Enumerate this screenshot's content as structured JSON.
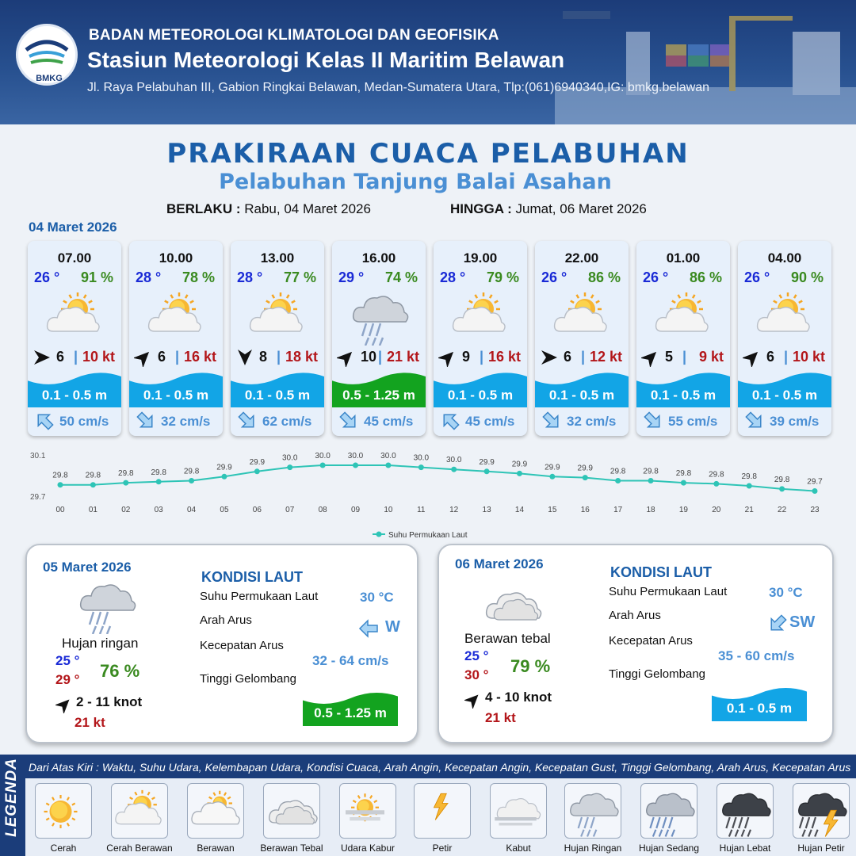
{
  "header": {
    "org": "BADAN METEOROLOGI KLIMATOLOGI DAN GEOFISIKA",
    "station": "Stasiun Meteorologi Kelas II Maritim Belawan",
    "address": "Jl. Raya Pelabuhan III, Gabion Ringkai Belawan, Medan-Sumatera Utara, Tlp:(061)6940340,IG: bmkg.belawan",
    "logo_text": "BMKG"
  },
  "title": "PRAKIRAAN CUACA PELABUHAN",
  "subtitle": "Pelabuhan Tanjung Balai Asahan",
  "validity": {
    "from_label": "BERLAKU :",
    "from_value": "Rabu, 04 Maret 2026",
    "to_label": "HINGGA :",
    "to_value": "Jumat, 06 Maret 2026"
  },
  "day1_label": "04 Maret 2026",
  "hourly": [
    {
      "time": "07.00",
      "temp": "26 °",
      "hum": "91 %",
      "icon": "cerah-berawan",
      "wind_dir": "east",
      "wind_speed": "6",
      "gust": "10 kt",
      "wave": "0.1 - 0.5 m",
      "wave_type": "low",
      "current_dir": "northwest",
      "current": "50 cm/s"
    },
    {
      "time": "10.00",
      "temp": "28 °",
      "hum": "78 %",
      "icon": "cerah-berawan",
      "wind_dir": "northeast",
      "wind_speed": "6",
      "gust": "16 kt",
      "wave": "0.1 - 0.5 m",
      "wave_type": "low",
      "current_dir": "southeast",
      "current": "32 cm/s"
    },
    {
      "time": "13.00",
      "temp": "28 °",
      "hum": "77 %",
      "icon": "cerah-berawan",
      "wind_dir": "south",
      "wind_speed": "8",
      "gust": "18 kt",
      "wave": "0.1 - 0.5 m",
      "wave_type": "low",
      "current_dir": "southeast",
      "current": "62 cm/s"
    },
    {
      "time": "16.00",
      "temp": "29 °",
      "hum": "74 %",
      "icon": "hujan-ringan",
      "wind_dir": "northeast",
      "wind_speed": "10",
      "gust": "21 kt",
      "wave": "0.5 - 1.25 m",
      "wave_type": "moderate",
      "current_dir": "southeast",
      "current": "45 cm/s"
    },
    {
      "time": "19.00",
      "temp": "28 °",
      "hum": "79 %",
      "icon": "cerah-berawan",
      "wind_dir": "northeast",
      "wind_speed": "9",
      "gust": "16 kt",
      "wave": "0.1 - 0.5 m",
      "wave_type": "low",
      "current_dir": "northwest",
      "current": "45 cm/s"
    },
    {
      "time": "22.00",
      "temp": "26 °",
      "hum": "86 %",
      "icon": "cerah-berawan",
      "wind_dir": "east",
      "wind_speed": "6",
      "gust": "12 kt",
      "wave": "0.1 - 0.5 m",
      "wave_type": "low",
      "current_dir": "southeast",
      "current": "32 cm/s"
    },
    {
      "time": "01.00",
      "temp": "26 °",
      "hum": "86 %",
      "icon": "cerah-berawan",
      "wind_dir": "northeast",
      "wind_speed": "5",
      "gust": "9 kt",
      "wave": "0.1 - 0.5 m",
      "wave_type": "low",
      "current_dir": "southeast",
      "current": "55 cm/s"
    },
    {
      "time": "04.00",
      "temp": "26 °",
      "hum": "90 %",
      "icon": "cerah-berawan",
      "wind_dir": "northeast",
      "wind_speed": "6",
      "gust": "10 kt",
      "wave": "0.1 - 0.5 m",
      "wave_type": "low",
      "current_dir": "southeast",
      "current": "39 cm/s"
    }
  ],
  "chart_data": {
    "type": "line",
    "x": [
      "00",
      "01",
      "02",
      "03",
      "04",
      "05",
      "06",
      "07",
      "08",
      "09",
      "10",
      "11",
      "12",
      "13",
      "14",
      "15",
      "16",
      "17",
      "18",
      "19",
      "20",
      "21",
      "22",
      "23"
    ],
    "series": [
      {
        "name": "Suhu Permukaan Laut",
        "values": [
          29.8,
          29.8,
          29.8,
          29.8,
          29.8,
          29.9,
          29.9,
          30.0,
          30.0,
          30.0,
          30.0,
          30.0,
          30.0,
          29.9,
          29.9,
          29.9,
          29.9,
          29.8,
          29.8,
          29.8,
          29.8,
          29.8,
          29.8,
          29.7
        ],
        "labels": [
          "29.8",
          "29.8",
          "29.8",
          "29.8",
          "29.8",
          "29.9",
          "29.9",
          "30.0",
          "30.0",
          "30.0",
          "30.0",
          "30.0",
          "30.0",
          "29.9",
          "29.9",
          "29.9",
          "29.9",
          "29.8",
          "29.8",
          "29.8",
          "29.8",
          "29.8",
          "29.8",
          "29.7"
        ],
        "plot_values": [
          29.81,
          29.81,
          29.83,
          29.84,
          29.85,
          29.89,
          29.94,
          29.98,
          30.0,
          30.0,
          30.0,
          29.98,
          29.96,
          29.94,
          29.92,
          29.89,
          29.88,
          29.85,
          29.85,
          29.83,
          29.82,
          29.8,
          29.77,
          29.75
        ]
      }
    ],
    "ylim": [
      29.7,
      30.1
    ],
    "yticks": [
      "29.7",
      "30.1"
    ],
    "legend": "bottom",
    "color": "#2ec4b6"
  },
  "daily": [
    {
      "date": "05 Maret 2026",
      "condition": "Hujan ringan",
      "icon": "hujan-ringan",
      "tmin": "25 °",
      "tmax": "29 °",
      "hum": "76 %",
      "wind_dir": "northeast",
      "wind": "2  - 11 knot",
      "gust": "21 kt",
      "kondisi": "KONDISI LAUT",
      "sst_label": "Suhu Permukaan Laut",
      "sst": "30 °C",
      "arus_label": "Arah Arus",
      "arus_dir": "west",
      "arus": "W",
      "kec_label": "Kecepatan Arus",
      "kec": "32 - 64 cm/s",
      "gel_label": "Tinggi Gelombang",
      "gel": "0.5 - 1.25 m",
      "wave_type": "moderate"
    },
    {
      "date": "06 Maret 2026",
      "condition": "Berawan tebal",
      "icon": "berawan-tebal",
      "tmin": "25 °",
      "tmax": "30 °",
      "hum": "79 %",
      "wind_dir": "northeast",
      "wind": "4  - 10 knot",
      "gust": "21 kt",
      "kondisi": "KONDISI LAUT",
      "sst_label": "Suhu Permukaan Laut",
      "sst": "30 °C",
      "arus_label": "Arah Arus",
      "arus_dir": "southwest",
      "arus": "SW",
      "kec_label": "Kecepatan Arus",
      "kec": "35  - 60 cm/s",
      "gel_label": "Tinggi Gelombang",
      "gel": "0.1 - 0.5 m",
      "wave_type": "low"
    }
  ],
  "legend": {
    "title": "LEGENDA",
    "description": "Dari Atas Kiri : Waktu, Suhu Udara, Kelembapan Udara, Kondisi Cuaca, Arah Angin, Kecepatan Angin, Kecepatan Gust, Tinggi Gelombang, Arah Arus, Kecepatan Arus",
    "items": [
      {
        "label": "Cerah",
        "icon": "cerah"
      },
      {
        "label": "Cerah Berawan",
        "icon": "cerah-berawan"
      },
      {
        "label": "Berawan",
        "icon": "berawan"
      },
      {
        "label": "Berawan Tebal",
        "icon": "berawan-tebal"
      },
      {
        "label": "Udara Kabur",
        "icon": "udara-kabur"
      },
      {
        "label": "Petir",
        "icon": "petir"
      },
      {
        "label": "Kabut",
        "icon": "kabut"
      },
      {
        "label": "Hujan Ringan",
        "icon": "hujan-ringan"
      },
      {
        "label": "Hujan Sedang",
        "icon": "hujan-sedang"
      },
      {
        "label": "Hujan Lebat",
        "icon": "hujan-lebat"
      },
      {
        "label": "Hujan Petir",
        "icon": "hujan-petir"
      }
    ]
  },
  "colors": {
    "wave_low": "#12a5e6",
    "wave_moderate": "#13a31f",
    "title": "#1b5ea8",
    "temp": "#1a2ad6",
    "humidity": "#3a8a20",
    "gust": "#b3161a"
  }
}
